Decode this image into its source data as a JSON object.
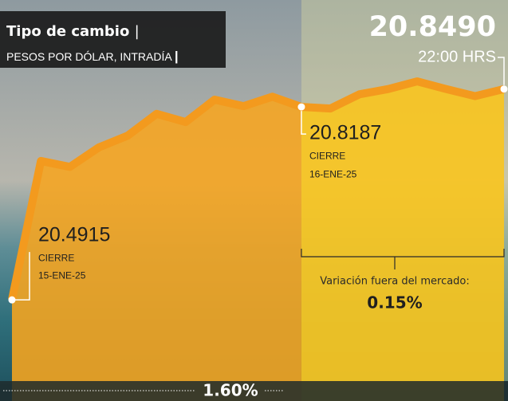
{
  "chart_data": {
    "type": "area",
    "title": "Tipo de cambio",
    "title_separator": "|",
    "subtitle": "PESOS POR DÓLAR, INTRADÍA",
    "subtitle_separator": "|",
    "categories": [
      null,
      null,
      null,
      null,
      null,
      null,
      null,
      null,
      null,
      null,
      null,
      null,
      null,
      null,
      null,
      null,
      null,
      null
    ],
    "series": [
      {
        "color": "#f39a1e",
        "values": [
          20.4915,
          20.727,
          20.717,
          20.75,
          20.77,
          20.807,
          20.793,
          20.831,
          20.82,
          20.836,
          20.8187,
          20.816,
          20.84,
          20.849,
          20.862,
          20.849,
          20.837,
          20.849
        ],
        "value_labels": [
          null,
          null,
          null,
          null,
          null,
          null,
          null,
          null,
          null,
          null,
          null,
          null,
          null,
          null,
          null,
          null,
          null,
          "20.8490"
        ]
      }
    ],
    "ylim": [
      20.32,
      21.0
    ],
    "last_time": "22:00 HRS",
    "close_label": "CIERRE",
    "close_dates": {
      "first": "15-ENE-25",
      "second": "16-ENE-25"
    },
    "after_market_label": "Variación fuera del mercado:",
    "after_market_change": {
      "value": 0.15,
      "label": "0.15%"
    },
    "total_change": {
      "value": 1.6,
      "label": "1.60%"
    }
  }
}
